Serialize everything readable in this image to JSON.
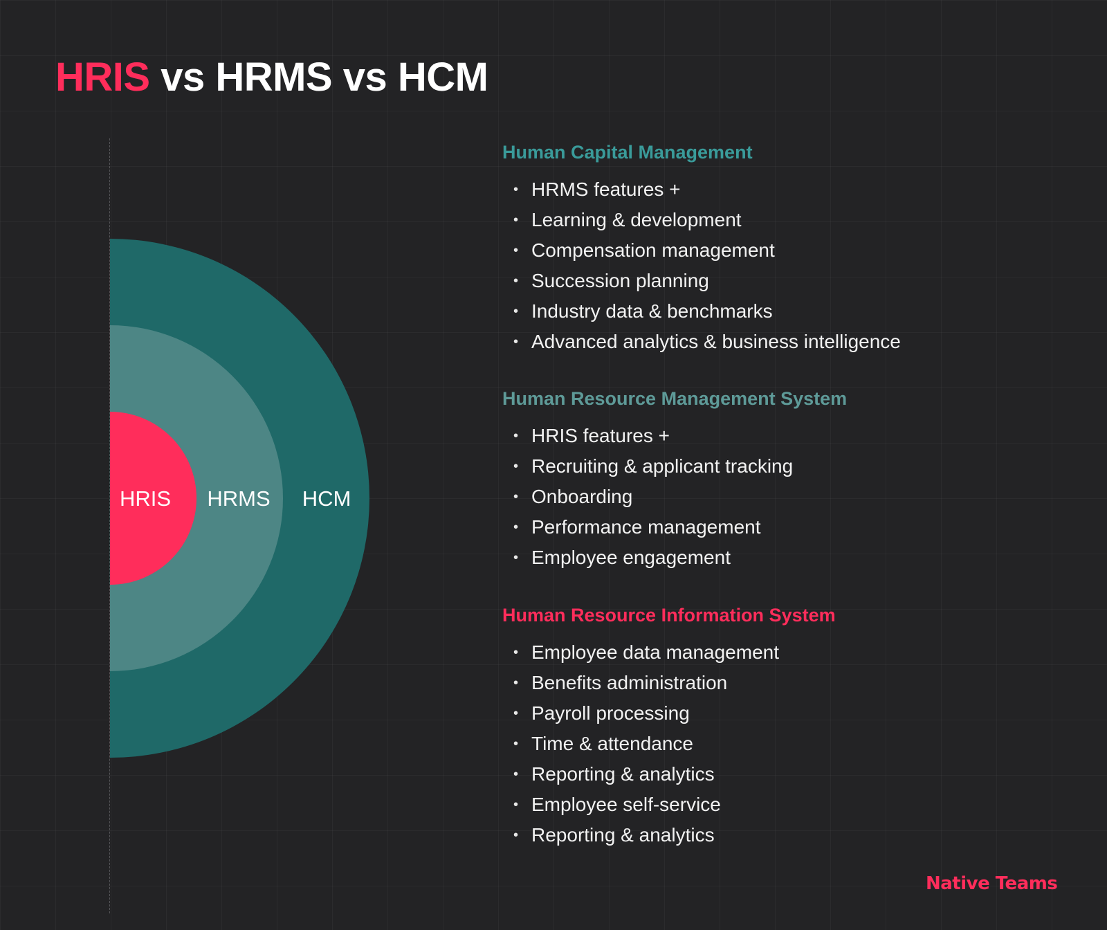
{
  "title": {
    "highlight": "HRIS",
    "rest": "vs HRMS vs HCM"
  },
  "colors": {
    "background": "#232325",
    "hcm_ring": "#1f6968",
    "hrms_ring": "#4d8685",
    "hris_core": "#ff2d5b",
    "hris_accent": "#ff2d5b",
    "hcm_heading": "#3a9b9a",
    "hrms_heading": "#5e9a98"
  },
  "diagram": {
    "rings": [
      {
        "label": "HCM"
      },
      {
        "label": "HRMS"
      },
      {
        "label": "HRIS"
      }
    ]
  },
  "sections": [
    {
      "heading": "Human Capital Management",
      "items": [
        "HRMS features +",
        "Learning & development",
        "Compensation management",
        "Succession planning",
        "Industry data & benchmarks",
        "Advanced analytics & business intelligence"
      ]
    },
    {
      "heading": "Human Resource Management System",
      "items": [
        "HRIS features +",
        "Recruiting & applicant tracking",
        "Onboarding",
        "Performance management",
        "Employee engagement"
      ]
    },
    {
      "heading": "Human Resource Information System",
      "items": [
        "Employee data management",
        "Benefits administration",
        "Payroll processing",
        "Time & attendance",
        "Reporting & analytics",
        "Employee self-service",
        "Reporting & analytics"
      ]
    }
  ],
  "brand": "Native Teams"
}
